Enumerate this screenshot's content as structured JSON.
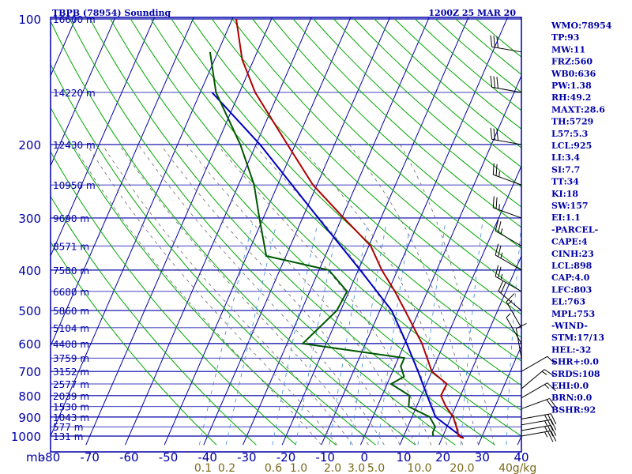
{
  "header": {
    "station": "TBPB (78954) Sounding",
    "time": "1200Z 25 MAR 20"
  },
  "sidebar": {
    "lines": [
      "WMO:78954",
      "TP:93",
      "MW:11",
      "FRZ:560",
      "WB0:636",
      "PW:1.38",
      "RH:49.2",
      "MAXT:28.6",
      "TH:5729",
      "L57:5.3",
      "LCL:925",
      "LI:3.4",
      "SI:7.7",
      "TT:34",
      "KI:18",
      "SW:157",
      "EI:1.1",
      "-PARCEL-",
      "CAPE:4",
      "CINH:23",
      "LCL:898",
      "CAP:4.0",
      "LFC:803",
      "EL:763",
      "MPL:753",
      "-WIND-",
      "STM:17/13",
      "HEL:-32",
      "SHR+:0.0",
      "SRDS:108",
      "EHI:0.0",
      "BRN:0.0",
      "BSHR:92"
    ]
  },
  "colors": {
    "frame": "#0000a8",
    "isotherm": "#0000a8",
    "dry_adiabat": "#00a800",
    "moist_adiabat": "#6a6a6a",
    "mixing_ratio": "#3a8ad8",
    "temperature": "#b00000",
    "dewpoint": "#005800",
    "parcel": "#0000c0",
    "barbs": "#000000"
  },
  "chart_data": {
    "type": "skew-t log-p sounding",
    "pressure_ticks": [
      100,
      200,
      300,
      400,
      500,
      600,
      700,
      800,
      900,
      1000
    ],
    "pressure_label": "mb",
    "temperature_ticks": [
      -80,
      -70,
      -60,
      -50,
      -40,
      -30,
      -20,
      -10,
      0,
      10,
      20,
      30,
      40
    ],
    "height_labels": [
      {
        "p": 100,
        "label": "16600 m"
      },
      {
        "p": 150,
        "label": "14220 m"
      },
      {
        "p": 200,
        "label": "12430 m"
      },
      {
        "p": 250,
        "label": "10950 m"
      },
      {
        "p": 300,
        "label": "9690 m"
      },
      {
        "p": 350,
        "label": "8571 m"
      },
      {
        "p": 400,
        "label": "7580 m"
      },
      {
        "p": 450,
        "label": "6680 m"
      },
      {
        "p": 500,
        "label": "5860 m"
      },
      {
        "p": 550,
        "label": "5104 m"
      },
      {
        "p": 600,
        "label": "4408 m"
      },
      {
        "p": 650,
        "label": "3759 m"
      },
      {
        "p": 700,
        "label": "3152 m"
      },
      {
        "p": 750,
        "label": "2577 m"
      },
      {
        "p": 800,
        "label": "2039 m"
      },
      {
        "p": 850,
        "label": "1530 m"
      },
      {
        "p": 900,
        "label": "1043 m"
      },
      {
        "p": 950,
        "label": "577 m"
      },
      {
        "p": 1000,
        "label": "131 m"
      }
    ],
    "mixing_ratio_labels": [
      "0.1",
      "0.2",
      "0.6",
      "1.0",
      "2.0",
      "3.0",
      "5.0",
      "10.0",
      "20.0",
      "40",
      "g/kg"
    ],
    "temperature": [
      {
        "p": 1012,
        "t": 25.5
      },
      {
        "p": 1000,
        "t": 24.0
      },
      {
        "p": 950,
        "t": 22.4
      },
      {
        "p": 900,
        "t": 20.5
      },
      {
        "p": 850,
        "t": 17.5
      },
      {
        "p": 800,
        "t": 15.0
      },
      {
        "p": 750,
        "t": 15.2
      },
      {
        "p": 700,
        "t": 10.0
      },
      {
        "p": 600,
        "t": 4.4
      },
      {
        "p": 500,
        "t": -3.6
      },
      {
        "p": 450,
        "t": -8.3
      },
      {
        "p": 400,
        "t": -14.0
      },
      {
        "p": 350,
        "t": -19.5
      },
      {
        "p": 300,
        "t": -29.5
      },
      {
        "p": 250,
        "t": -41.0
      },
      {
        "p": 200,
        "t": -52.0
      },
      {
        "p": 150,
        "t": -66.0
      },
      {
        "p": 125,
        "t": -73.0
      },
      {
        "p": 100,
        "t": -79.0
      }
    ],
    "dewpoint": [
      {
        "p": 1000,
        "td": 17.5
      },
      {
        "p": 980,
        "td": 17.0
      },
      {
        "p": 950,
        "td": 17.0
      },
      {
        "p": 900,
        "td": 14.5
      },
      {
        "p": 850,
        "td": 8.0
      },
      {
        "p": 800,
        "td": 7.0
      },
      {
        "p": 750,
        "td": 1.0
      },
      {
        "p": 720,
        "td": 3.5
      },
      {
        "p": 680,
        "td": 1.5
      },
      {
        "p": 650,
        "td": 1.5
      },
      {
        "p": 600,
        "td": -26.0
      },
      {
        "p": 500,
        "td": -21.0
      },
      {
        "p": 450,
        "td": -20.5
      },
      {
        "p": 400,
        "td": -27.5
      },
      {
        "p": 370,
        "td": -45.0
      },
      {
        "p": 300,
        "td": -51.0
      },
      {
        "p": 250,
        "td": -56.0
      },
      {
        "p": 200,
        "td": -64.0
      },
      {
        "p": 150,
        "td": -76.0
      },
      {
        "p": 120,
        "td": -82.0
      }
    ],
    "parcel": [
      {
        "p": 1012,
        "t": 25.5
      },
      {
        "p": 900,
        "t": 16.0
      },
      {
        "p": 800,
        "t": 11.5
      },
      {
        "p": 700,
        "t": 6.5
      },
      {
        "p": 600,
        "t": 0.5
      },
      {
        "p": 500,
        "t": -7.0
      },
      {
        "p": 400,
        "t": -19.5
      },
      {
        "p": 300,
        "t": -36.0
      },
      {
        "p": 200,
        "t": -59.0
      },
      {
        "p": 150,
        "t": -77.0
      }
    ],
    "wind_barbs": [
      {
        "p": 1000,
        "dir": 80,
        "spd": 25
      },
      {
        "p": 970,
        "dir": 80,
        "spd": 25
      },
      {
        "p": 940,
        "dir": 80,
        "spd": 25
      },
      {
        "p": 910,
        "dir": 80,
        "spd": 25
      },
      {
        "p": 860,
        "dir": 70,
        "spd": 20
      },
      {
        "p": 810,
        "dir": 60,
        "spd": 15
      },
      {
        "p": 770,
        "dir": 50,
        "spd": 15
      },
      {
        "p": 700,
        "dir": 60,
        "spd": 10
      },
      {
        "p": 650,
        "dir": 350,
        "spd": 10
      },
      {
        "p": 600,
        "dir": 330,
        "spd": 5
      },
      {
        "p": 550,
        "dir": 330,
        "spd": 15
      },
      {
        "p": 500,
        "dir": 310,
        "spd": 20
      },
      {
        "p": 450,
        "dir": 300,
        "spd": 25
      },
      {
        "p": 400,
        "dir": 300,
        "spd": 25
      },
      {
        "p": 350,
        "dir": 300,
        "spd": 25
      },
      {
        "p": 300,
        "dir": 290,
        "spd": 25
      },
      {
        "p": 250,
        "dir": 290,
        "spd": 25
      },
      {
        "p": 200,
        "dir": 280,
        "spd": 30
      },
      {
        "p": 150,
        "dir": 280,
        "spd": 30
      },
      {
        "p": 120,
        "dir": 280,
        "spd": 30
      }
    ]
  }
}
